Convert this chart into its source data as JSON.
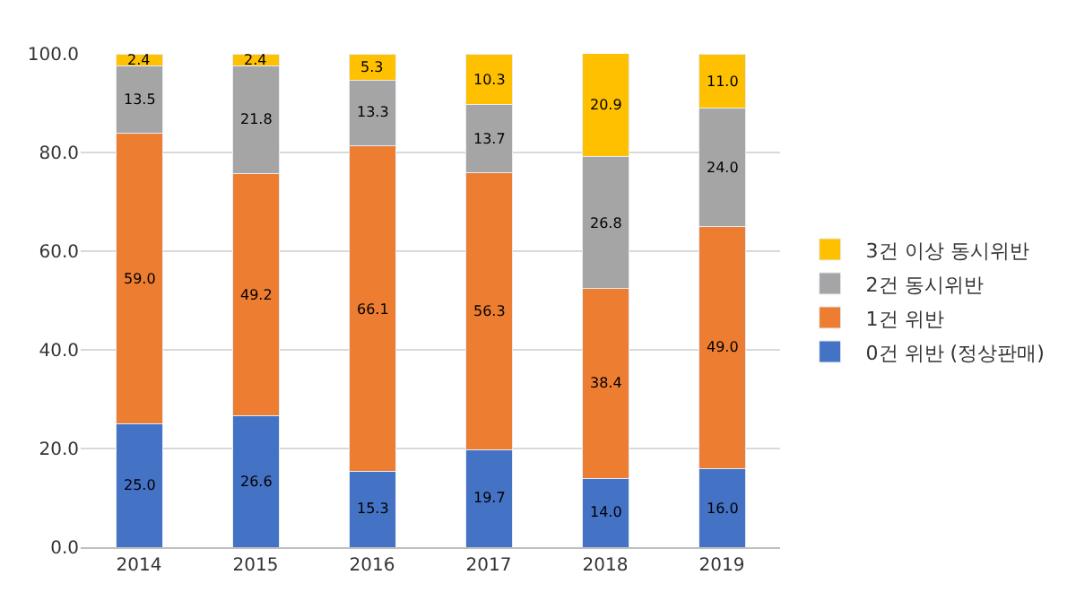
{
  "chart_data": {
    "type": "bar",
    "stacked": true,
    "categories": [
      "2014",
      "2015",
      "2016",
      "2017",
      "2018",
      "2019"
    ],
    "series": [
      {
        "name": "0건 위반 (정상판매)",
        "color": "#4472c4",
        "values": [
          25.0,
          26.6,
          15.3,
          19.7,
          14.0,
          16.0
        ],
        "value_labels": [
          "25.0",
          "26.6",
          "15.3",
          "19.7",
          "14.0",
          "16.0"
        ]
      },
      {
        "name": "1건 위반",
        "color": "#ed7d31",
        "values": [
          59.0,
          49.2,
          66.1,
          56.3,
          38.4,
          49.0
        ],
        "value_labels": [
          "59.0",
          "49.2",
          "66.1",
          "56.3",
          "38.4",
          "49.0"
        ]
      },
      {
        "name": "2건 동시위반",
        "color": "#a5a5a5",
        "values": [
          13.5,
          21.8,
          13.3,
          13.7,
          26.8,
          24.0
        ],
        "value_labels": [
          "13.5",
          "21.8",
          "13.3",
          "13.7",
          "26.8",
          "24.0"
        ]
      },
      {
        "name": "3건 이상 동시위반",
        "color": "#ffc000",
        "values": [
          2.4,
          2.4,
          5.3,
          10.3,
          20.9,
          11.0
        ],
        "value_labels": [
          "2.4",
          "2.4",
          "5.3",
          "10.3",
          "20.9",
          "11.0"
        ]
      }
    ],
    "ylim": [
      0,
      100
    ],
    "yticks": [
      {
        "value": 0,
        "label": "0.0"
      },
      {
        "value": 20,
        "label": "20.0"
      },
      {
        "value": 40,
        "label": "40.0"
      },
      {
        "value": 60,
        "label": "60.0"
      },
      {
        "value": 80,
        "label": "80.0"
      },
      {
        "value": 100,
        "label": "100.0"
      }
    ],
    "grid": "y",
    "legend": "right"
  }
}
